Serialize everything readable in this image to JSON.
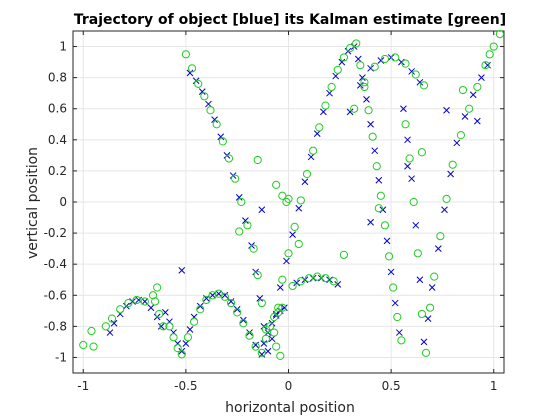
{
  "chart_data": {
    "type": "scatter",
    "title": "Trajectory of object [blue] its Kalman estimate [green]",
    "xlabel": "horizontal position",
    "ylabel": "vertical position",
    "xlim": [
      -1.05,
      1.05
    ],
    "ylim": [
      -1.1,
      1.1
    ],
    "xticks": [
      -1,
      -0.5,
      0,
      0.5,
      1
    ],
    "yticks": [
      -1,
      -0.8,
      -0.6,
      -0.4,
      -0.2,
      0,
      0.2,
      0.4,
      0.6,
      0.8,
      1
    ],
    "xtick_labels": [
      "-1",
      "-0.5",
      "0",
      "0.5",
      "1"
    ],
    "ytick_labels": [
      "-1",
      "-0.8",
      "-0.6",
      "-0.4",
      "-0.2",
      "0",
      "0.2",
      "0.4",
      "0.6",
      "0.8",
      "1"
    ],
    "grid": true,
    "colors": {
      "true_path": "#0000cc",
      "estimate": "#22cc22"
    },
    "series": [
      {
        "marker": "x",
        "color": "#0000cc",
        "points": [
          [
            -0.87,
            -0.84
          ],
          [
            -0.85,
            -0.78
          ],
          [
            -0.82,
            -0.72
          ],
          [
            -0.79,
            -0.67
          ],
          [
            -0.76,
            -0.64
          ],
          [
            -0.73,
            -0.63
          ],
          [
            -0.7,
            -0.64
          ],
          [
            -0.67,
            -0.68
          ],
          [
            -0.64,
            -0.74
          ],
          [
            -0.62,
            -0.8
          ],
          [
            -0.6,
            -0.71
          ],
          [
            -0.58,
            -0.77
          ],
          [
            -0.56,
            -0.84
          ],
          [
            -0.54,
            -0.91
          ],
          [
            -0.52,
            -0.96
          ],
          [
            -0.5,
            -0.91
          ],
          [
            -0.48,
            -0.82
          ],
          [
            -0.46,
            -0.74
          ],
          [
            -0.43,
            -0.67
          ],
          [
            -0.4,
            -0.62
          ],
          [
            -0.37,
            -0.6
          ],
          [
            -0.34,
            -0.59
          ],
          [
            -0.31,
            -0.6
          ],
          [
            -0.28,
            -0.64
          ],
          [
            -0.25,
            -0.69
          ],
          [
            -0.22,
            -0.76
          ],
          [
            -0.19,
            -0.84
          ],
          [
            -0.16,
            -0.92
          ],
          [
            -0.13,
            -0.98
          ],
          [
            -0.12,
            -0.91
          ],
          [
            -0.1,
            -0.84
          ],
          [
            -0.08,
            -0.78
          ],
          [
            -0.06,
            -0.73
          ],
          [
            -0.04,
            -0.7
          ],
          [
            -0.02,
            -0.68
          ],
          [
            -0.48,
            0.83
          ],
          [
            -0.45,
            0.78
          ],
          [
            -0.42,
            0.71
          ],
          [
            -0.39,
            0.63
          ],
          [
            -0.36,
            0.53
          ],
          [
            -0.33,
            0.42
          ],
          [
            -0.3,
            0.3
          ],
          [
            -0.27,
            0.17
          ],
          [
            -0.24,
            0.03
          ],
          [
            -0.21,
            -0.12
          ],
          [
            -0.18,
            -0.28
          ],
          [
            -0.16,
            -0.45
          ],
          [
            -0.14,
            -0.62
          ],
          [
            -0.12,
            -0.8
          ],
          [
            -0.1,
            -0.96
          ],
          [
            -0.08,
            -0.88
          ],
          [
            -0.06,
            -0.72
          ],
          [
            -0.04,
            -0.55
          ],
          [
            -0.01,
            -0.38
          ],
          [
            0.02,
            -0.21
          ],
          [
            0.05,
            -0.04
          ],
          [
            0.08,
            0.13
          ],
          [
            0.11,
            0.29
          ],
          [
            0.14,
            0.44
          ],
          [
            0.17,
            0.58
          ],
          [
            0.2,
            0.7
          ],
          [
            0.23,
            0.81
          ],
          [
            0.26,
            0.9
          ],
          [
            0.29,
            0.97
          ],
          [
            0.32,
            1.0
          ],
          [
            0.34,
            0.92
          ],
          [
            0.36,
            0.8
          ],
          [
            0.38,
            0.66
          ],
          [
            0.4,
            0.5
          ],
          [
            0.42,
            0.33
          ],
          [
            0.44,
            0.14
          ],
          [
            0.46,
            -0.05
          ],
          [
            0.48,
            -0.25
          ],
          [
            0.5,
            -0.45
          ],
          [
            0.52,
            -0.65
          ],
          [
            0.54,
            -0.84
          ],
          [
            0.04,
            -0.52
          ],
          [
            0.08,
            -0.5
          ],
          [
            0.12,
            -0.49
          ],
          [
            0.16,
            -0.49
          ],
          [
            0.2,
            -0.5
          ],
          [
            0.24,
            -0.53
          ],
          [
            0.3,
            0.58
          ],
          [
            0.35,
            0.75
          ],
          [
            0.4,
            0.86
          ],
          [
            0.45,
            0.91
          ],
          [
            0.5,
            0.93
          ],
          [
            0.55,
            0.9
          ],
          [
            0.6,
            0.84
          ],
          [
            0.64,
            0.77
          ],
          [
            0.56,
            0.6
          ],
          [
            0.58,
            0.4
          ],
          [
            0.6,
            0.15
          ],
          [
            0.62,
            -0.15
          ],
          [
            0.64,
            -0.5
          ],
          [
            0.66,
            -0.9
          ],
          [
            0.68,
            -0.75
          ],
          [
            0.7,
            -0.55
          ],
          [
            0.73,
            -0.3
          ],
          [
            0.76,
            -0.05
          ],
          [
            0.79,
            0.18
          ],
          [
            0.82,
            0.38
          ],
          [
            0.86,
            0.55
          ],
          [
            0.9,
            0.69
          ],
          [
            0.94,
            0.8
          ],
          [
            0.97,
            0.88
          ],
          [
            -0.52,
            -0.44
          ],
          [
            -0.13,
            -0.05
          ],
          [
            0.4,
            -0.13
          ],
          [
            0.58,
            0.23
          ],
          [
            0.77,
            0.59
          ],
          [
            0.92,
            0.52
          ]
        ]
      },
      {
        "marker": "o",
        "color": "#22cc22",
        "points": [
          [
            -1.0,
            -0.92
          ],
          [
            -0.96,
            -0.83
          ],
          [
            -0.95,
            -0.93
          ],
          [
            -0.89,
            -0.8
          ],
          [
            -0.86,
            -0.75
          ],
          [
            -0.82,
            -0.69
          ],
          [
            -0.78,
            -0.65
          ],
          [
            -0.74,
            -0.63
          ],
          [
            -0.7,
            -0.64
          ],
          [
            -0.66,
            -0.6
          ],
          [
            -0.64,
            -0.55
          ],
          [
            -0.65,
            -0.64
          ],
          [
            -0.63,
            -0.72
          ],
          [
            -0.61,
            -0.8
          ],
          [
            -0.58,
            -0.8
          ],
          [
            -0.56,
            -0.87
          ],
          [
            -0.54,
            -0.94
          ],
          [
            -0.52,
            -0.98
          ],
          [
            -0.49,
            -0.87
          ],
          [
            -0.46,
            -0.77
          ],
          [
            -0.43,
            -0.69
          ],
          [
            -0.4,
            -0.63
          ],
          [
            -0.37,
            -0.6
          ],
          [
            -0.34,
            -0.59
          ],
          [
            -0.31,
            -0.61
          ],
          [
            -0.28,
            -0.65
          ],
          [
            -0.25,
            -0.71
          ],
          [
            -0.22,
            -0.78
          ],
          [
            -0.19,
            -0.86
          ],
          [
            -0.16,
            -0.93
          ],
          [
            -0.13,
            -0.97
          ],
          [
            -0.11,
            -0.88
          ],
          [
            -0.09,
            -0.8
          ],
          [
            -0.07,
            -0.74
          ],
          [
            -0.05,
            -0.71
          ],
          [
            -0.03,
            -0.68
          ],
          [
            -0.06,
            -0.93
          ],
          [
            -0.04,
            -0.99
          ],
          [
            -0.5,
            0.95
          ],
          [
            -0.47,
            0.86
          ],
          [
            -0.44,
            0.76
          ],
          [
            -0.41,
            0.68
          ],
          [
            -0.38,
            0.59
          ],
          [
            -0.35,
            0.5
          ],
          [
            -0.32,
            0.39
          ],
          [
            -0.29,
            0.28
          ],
          [
            -0.26,
            0.15
          ],
          [
            -0.23,
            0.0
          ],
          [
            -0.2,
            -0.15
          ],
          [
            -0.17,
            -0.3
          ],
          [
            -0.15,
            -0.47
          ],
          [
            -0.13,
            -0.65
          ],
          [
            -0.11,
            -0.82
          ],
          [
            -0.15,
            0.27
          ],
          [
            -0.06,
            0.11
          ],
          [
            -0.03,
            0.04
          ],
          [
            -0.01,
            0.0
          ],
          [
            0.0,
            0.02
          ],
          [
            -0.24,
            -0.19
          ],
          [
            -0.07,
            -0.84
          ],
          [
            -0.05,
            -0.68
          ],
          [
            -0.03,
            -0.5
          ],
          [
            0.0,
            -0.33
          ],
          [
            0.03,
            -0.16
          ],
          [
            0.06,
            0.01
          ],
          [
            0.09,
            0.18
          ],
          [
            0.12,
            0.33
          ],
          [
            0.15,
            0.48
          ],
          [
            0.18,
            0.62
          ],
          [
            0.21,
            0.74
          ],
          [
            0.24,
            0.85
          ],
          [
            0.27,
            0.93
          ],
          [
            0.3,
            0.99
          ],
          [
            0.33,
            1.02
          ],
          [
            0.35,
            0.88
          ],
          [
            0.37,
            0.74
          ],
          [
            0.39,
            0.59
          ],
          [
            0.41,
            0.42
          ],
          [
            0.43,
            0.23
          ],
          [
            0.45,
            0.04
          ],
          [
            0.47,
            -0.15
          ],
          [
            0.49,
            -0.35
          ],
          [
            0.51,
            -0.55
          ],
          [
            0.53,
            -0.74
          ],
          [
            0.55,
            -0.89
          ],
          [
            0.02,
            -0.54
          ],
          [
            0.06,
            -0.51
          ],
          [
            0.1,
            -0.49
          ],
          [
            0.14,
            -0.48
          ],
          [
            0.18,
            -0.49
          ],
          [
            0.22,
            -0.51
          ],
          [
            0.05,
            -0.27
          ],
          [
            0.27,
            -0.34
          ],
          [
            0.32,
            0.6
          ],
          [
            0.37,
            0.77
          ],
          [
            0.42,
            0.87
          ],
          [
            0.47,
            0.92
          ],
          [
            0.52,
            0.93
          ],
          [
            0.57,
            0.89
          ],
          [
            0.62,
            0.82
          ],
          [
            0.66,
            0.75
          ],
          [
            0.57,
            0.5
          ],
          [
            0.59,
            0.28
          ],
          [
            0.61,
            0.0
          ],
          [
            0.63,
            -0.33
          ],
          [
            0.65,
            -0.72
          ],
          [
            0.67,
            -0.97
          ],
          [
            0.69,
            -0.68
          ],
          [
            0.71,
            -0.48
          ],
          [
            0.74,
            -0.22
          ],
          [
            0.77,
            0.02
          ],
          [
            0.8,
            0.24
          ],
          [
            0.84,
            0.43
          ],
          [
            0.88,
            0.6
          ],
          [
            0.92,
            0.74
          ],
          [
            0.96,
            0.88
          ],
          [
            1.0,
            1.0
          ],
          [
            1.03,
            1.08
          ],
          [
            0.44,
            -0.04
          ],
          [
            0.65,
            0.32
          ],
          [
            0.85,
            0.72
          ],
          [
            0.98,
            0.95
          ]
        ]
      }
    ]
  }
}
